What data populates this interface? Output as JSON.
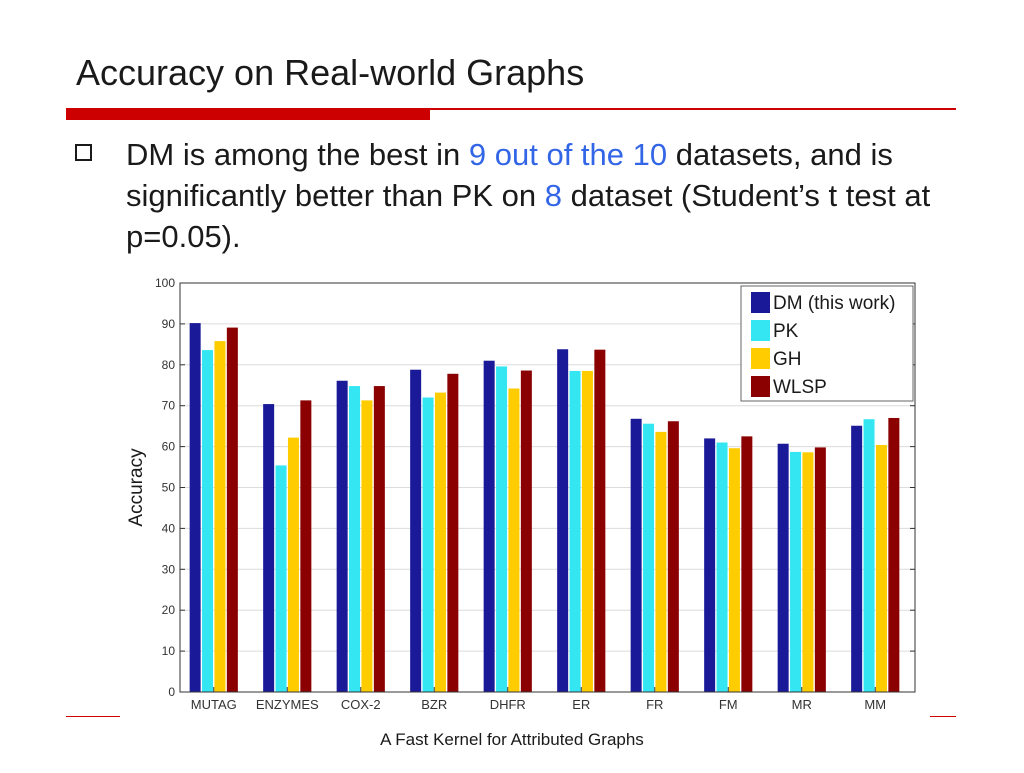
{
  "slide": {
    "title": "Accuracy on Real-world Graphs",
    "bullet": {
      "part1": "DM is among the best in ",
      "highlight1": "9 out of the 10",
      "part2": " datasets, and is significantly better than PK on ",
      "highlight2": "8",
      "part3": " dataset (Student’s t test at p=0.05)."
    },
    "footer": "A Fast Kernel for Attributed Graphs"
  },
  "colors": {
    "accent_red": "#cc0000",
    "highlight_blue": "#3366e6"
  },
  "chart_data": {
    "type": "bar",
    "ylabel": "Accuracy",
    "xlabel": "",
    "ylim": [
      0,
      100
    ],
    "yticks": [
      0,
      10,
      20,
      30,
      40,
      50,
      60,
      70,
      80,
      90,
      100
    ],
    "legend_position": "top-right",
    "categories": [
      "MUTAG",
      "ENZYMES",
      "COX-2",
      "BZR",
      "DHFR",
      "ER",
      "FR",
      "FM",
      "MR",
      "MM"
    ],
    "series": [
      {
        "name": "DM (this work)",
        "color": "#1a1a99",
        "values": [
          90.2,
          70.4,
          76.1,
          78.8,
          81.0,
          83.8,
          66.8,
          62.0,
          60.7,
          65.1
        ]
      },
      {
        "name": "PK",
        "color": "#33e6f2",
        "values": [
          83.6,
          55.4,
          74.8,
          72.0,
          79.6,
          78.5,
          65.6,
          61.0,
          58.7,
          66.7
        ]
      },
      {
        "name": "GH",
        "color": "#ffcc00",
        "values": [
          85.8,
          62.2,
          71.3,
          73.2,
          74.2,
          78.5,
          63.6,
          59.6,
          58.6,
          60.4
        ]
      },
      {
        "name": "WLSP",
        "color": "#8b0000",
        "values": [
          89.1,
          71.3,
          74.8,
          77.8,
          78.6,
          83.7,
          66.2,
          62.5,
          59.8,
          67.0
        ]
      }
    ]
  }
}
